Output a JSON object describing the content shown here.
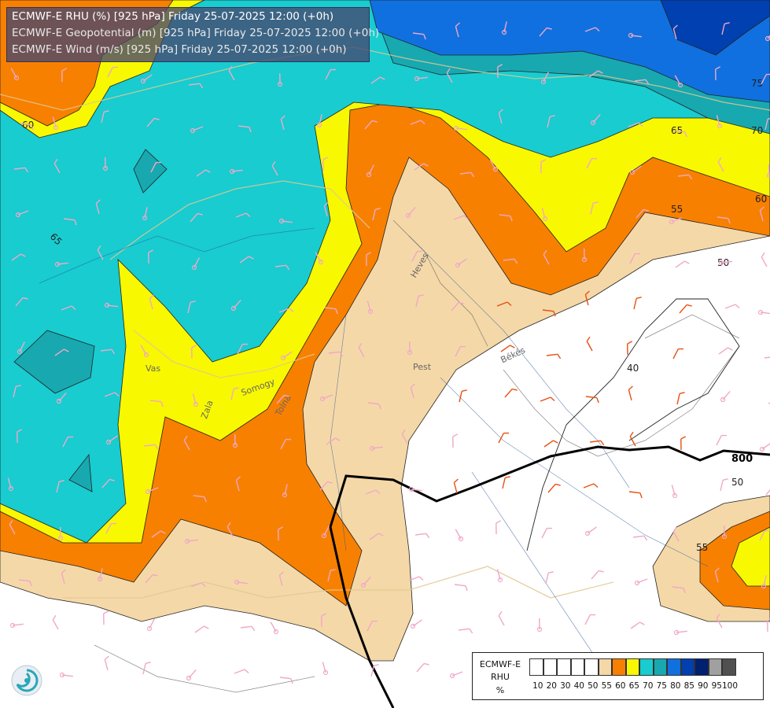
{
  "header": {
    "line1": "ECMWF-E RHU (%) [925 hPa] Friday 25-07-2025 12:00 (+0h)",
    "line2": "ECMWF-E Geopotential (m) [925 hPa] Friday 25-07-2025 12:00 (+0h)",
    "line3": "ECMWF-E Wind (m/s) [925 hPa] Friday 25-07-2025 12:00 (+0h)"
  },
  "legend": {
    "title_line1": "ECMWF-E",
    "title_line2": "RHU",
    "title_line3": "%",
    "classes": [
      {
        "label": "10",
        "color": "#ffffff"
      },
      {
        "label": "20",
        "color": "#ffffff"
      },
      {
        "label": "30",
        "color": "#ffffff"
      },
      {
        "label": "40",
        "color": "#ffffff"
      },
      {
        "label": "50",
        "color": "#ffffff"
      },
      {
        "label": "55",
        "color": "#f5d8a8"
      },
      {
        "label": "60",
        "color": "#f88000"
      },
      {
        "label": "65",
        "color": "#f8f800"
      },
      {
        "label": "70",
        "color": "#18ccd0"
      },
      {
        "label": "75",
        "color": "#18a8b0"
      },
      {
        "label": "80",
        "color": "#1070e0"
      },
      {
        "label": "85",
        "color": "#0040b0"
      },
      {
        "label": "90",
        "color": "#002070"
      },
      {
        "label": "95",
        "color": "#a0a0a0"
      },
      {
        "label": "100",
        "color": "#505050"
      }
    ]
  },
  "contour_labels": {
    "c60_left": "60",
    "c65_left": "65",
    "c65_right": "65",
    "c70_right": "70",
    "c75_right": "75",
    "c60_right": "60",
    "c55_right": "55",
    "c50_right": "50",
    "c40": "40",
    "c50_lower": "50",
    "c55_lower": "55",
    "geopotential": "800"
  },
  "regions": {
    "heves": "Heves",
    "pest": "Pest",
    "bekes": "Békés",
    "vas": "Vas",
    "somogy": "Somogy",
    "zala": "Zala",
    "tolna": "Tolna"
  },
  "colors": {
    "rhu_50_55": "#f5d8a8",
    "rhu_55_60": "#f88000",
    "rhu_60_65": "#f8f800",
    "rhu_65_70": "#18ccd0",
    "rhu_70_75": "#18a8b0",
    "rhu_75_80": "#1070e0",
    "rhu_80_85": "#0040b0",
    "rhu_85_90": "#002070"
  }
}
